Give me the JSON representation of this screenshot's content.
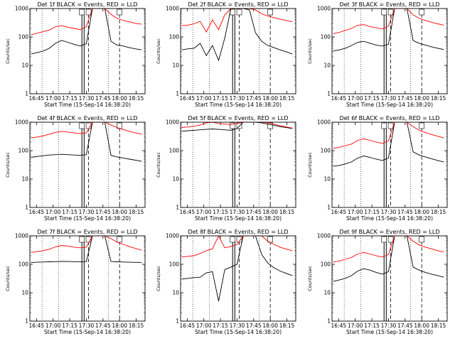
{
  "figure": {
    "ylabel": "Counts/sec",
    "xlabel": "Start Time (15-Sep-14 16:38:20)"
  },
  "chart_data": [
    {
      "type": "line",
      "title": "Det 1f BLACK = Events, RED = LLD",
      "scale": "log",
      "ylim": [
        1,
        1000
      ],
      "x_ticks": [
        "16:45",
        "17:00",
        "17:15",
        "17:30",
        "17:45",
        "18:00",
        "18:15"
      ],
      "series": [
        {
          "name": "Events",
          "color": "#000000",
          "values": [
            25,
            28,
            32,
            40,
            60,
            75,
            65,
            55,
            48,
            58,
            1000,
            1000,
            1000,
            70,
            52,
            48,
            42,
            38,
            35
          ]
        },
        {
          "name": "LLD",
          "color": "#ff0000",
          "values": [
            120,
            135,
            155,
            175,
            230,
            250,
            220,
            200,
            180,
            230,
            1000,
            1000,
            1000,
            620,
            450,
            380,
            340,
            300,
            280
          ]
        }
      ]
    },
    {
      "type": "line",
      "title": "Det 2f BLACK = Events, RED = LLD",
      "scale": "log",
      "ylim": [
        1,
        1000
      ],
      "x_ticks": [
        "16:45",
        "17:00",
        "17:15",
        "17:30",
        "17:45",
        "18:00",
        "18:15"
      ],
      "series": [
        {
          "name": "Events",
          "color": "#000000",
          "values": [
            35,
            38,
            40,
            60,
            22,
            50,
            15,
            90,
            1000,
            1000,
            1000,
            900,
            140,
            70,
            50,
            42,
            35,
            30,
            25
          ]
        },
        {
          "name": "LLD",
          "color": "#ff0000",
          "values": [
            250,
            260,
            290,
            350,
            150,
            400,
            180,
            600,
            1000,
            1000,
            1000,
            1000,
            900,
            650,
            550,
            480,
            420,
            380,
            340
          ]
        }
      ]
    },
    {
      "type": "line",
      "title": "Det 3f BLACK = Events, RED = LLD",
      "scale": "log",
      "ylim": [
        1,
        1000
      ],
      "x_ticks": [
        "16:45",
        "17:00",
        "17:15",
        "17:30",
        "17:45",
        "18:00",
        "18:15"
      ],
      "series": [
        {
          "name": "Events",
          "color": "#000000",
          "values": [
            32,
            35,
            40,
            50,
            65,
            70,
            60,
            52,
            48,
            55,
            1000,
            1000,
            1000,
            75,
            60,
            52,
            45,
            40,
            36
          ]
        },
        {
          "name": "LLD",
          "color": "#ff0000",
          "values": [
            130,
            145,
            170,
            200,
            260,
            270,
            230,
            210,
            190,
            240,
            1000,
            1000,
            1000,
            600,
            450,
            380,
            330,
            290,
            260
          ]
        }
      ]
    },
    {
      "type": "line",
      "title": "Det 4f BLACK = Events, RED = LLD",
      "scale": "log",
      "ylim": [
        1,
        1000
      ],
      "x_ticks": [
        "16:45",
        "17:00",
        "17:15",
        "17:30",
        "17:45",
        "18:00",
        "18:15"
      ],
      "series": [
        {
          "name": "Events",
          "color": "#000000",
          "values": [
            58,
            62,
            66,
            70,
            72,
            74,
            72,
            70,
            68,
            72,
            1000,
            1000,
            1000,
            68,
            60,
            55,
            50,
            46,
            42
          ]
        },
        {
          "name": "LLD",
          "color": "#ff0000",
          "values": [
            280,
            300,
            330,
            380,
            440,
            470,
            450,
            420,
            400,
            420,
            1000,
            1000,
            1000,
            800,
            650,
            550,
            480,
            420,
            380
          ]
        }
      ]
    },
    {
      "type": "line",
      "title": "Det 5f BLACK = Events, RED = LLD",
      "scale": "log",
      "ylim": [
        1,
        1000
      ],
      "x_ticks": [
        "16:45",
        "17:00",
        "17:15",
        "17:30",
        "17:45",
        "18:00",
        "18:15"
      ],
      "series": [
        {
          "name": "Events",
          "color": "#000000",
          "values": [
            480,
            500,
            520,
            540,
            560,
            580,
            560,
            540,
            520,
            600,
            1000,
            1000,
            1000,
            950,
            850,
            780,
            700,
            650,
            600
          ]
        },
        {
          "name": "LLD",
          "color": "#ff0000",
          "values": [
            650,
            680,
            720,
            800,
            950,
            1000,
            900,
            860,
            820,
            900,
            1000,
            1000,
            1000,
            1000,
            950,
            850,
            750,
            680,
            620
          ]
        }
      ]
    },
    {
      "type": "line",
      "title": "Det 6f BLACK = Events, RED = LLD",
      "scale": "log",
      "ylim": [
        1,
        1000
      ],
      "x_ticks": [
        "16:45",
        "17:00",
        "17:15",
        "17:30",
        "17:45",
        "18:00",
        "18:15"
      ],
      "series": [
        {
          "name": "Events",
          "color": "#000000",
          "values": [
            28,
            30,
            34,
            40,
            55,
            65,
            58,
            50,
            45,
            55,
            1000,
            1000,
            1000,
            90,
            70,
            60,
            52,
            45,
            40
          ]
        },
        {
          "name": "LLD",
          "color": "#ff0000",
          "values": [
            120,
            130,
            150,
            170,
            230,
            260,
            230,
            200,
            180,
            220,
            1000,
            1000,
            1000,
            700,
            520,
            430,
            370,
            320,
            280
          ]
        }
      ]
    },
    {
      "type": "line",
      "title": "Det 7f BLACK = Events, RED = LLD",
      "scale": "log",
      "ylim": [
        1,
        1000
      ],
      "x_ticks": [
        "16:45",
        "17:00",
        "17:15",
        "17:30",
        "17:45",
        "18:00",
        "18:15"
      ],
      "series": [
        {
          "name": "Events",
          "color": "#000000",
          "values": [
            115,
            118,
            120,
            122,
            124,
            126,
            125,
            124,
            123,
            124,
            1000,
            1000,
            1000,
            125,
            122,
            120,
            118,
            117,
            116
          ]
        },
        {
          "name": "LLD",
          "color": "#ff0000",
          "values": [
            260,
            280,
            300,
            340,
            410,
            460,
            440,
            400,
            380,
            400,
            1000,
            1000,
            1000,
            800,
            600,
            500,
            420,
            360,
            310
          ]
        }
      ]
    },
    {
      "type": "line",
      "title": "Det 8f BLACK = Events, RED = LLD",
      "scale": "log",
      "ylim": [
        1,
        1000
      ],
      "x_ticks": [
        "16:45",
        "17:00",
        "17:15",
        "17:30",
        "17:45",
        "18:00",
        "18:15"
      ],
      "series": [
        {
          "name": "Events",
          "color": "#000000",
          "values": [
            30,
            32,
            34,
            35,
            50,
            55,
            5,
            65,
            80,
            100,
            1000,
            1000,
            1000,
            220,
            110,
            75,
            58,
            48,
            40
          ]
        },
        {
          "name": "LLD",
          "color": "#ff0000",
          "values": [
            180,
            190,
            200,
            240,
            300,
            350,
            1000,
            380,
            420,
            500,
            1000,
            1000,
            1000,
            1000,
            650,
            500,
            400,
            340,
            300
          ]
        }
      ]
    },
    {
      "type": "line",
      "title": "Det 9f BLACK = Events, RED = LLD",
      "scale": "log",
      "ylim": [
        1,
        1000
      ],
      "x_ticks": [
        "16:45",
        "17:00",
        "17:15",
        "17:30",
        "17:45",
        "18:00",
        "18:15"
      ],
      "series": [
        {
          "name": "Events",
          "color": "#000000",
          "values": [
            25,
            28,
            32,
            40,
            58,
            70,
            62,
            52,
            45,
            55,
            1000,
            1000,
            1000,
            80,
            62,
            52,
            45,
            40,
            35
          ]
        },
        {
          "name": "LLD",
          "color": "#ff0000",
          "values": [
            120,
            130,
            150,
            175,
            230,
            260,
            230,
            200,
            180,
            220,
            1000,
            1000,
            1000,
            650,
            480,
            400,
            350,
            300,
            270
          ]
        }
      ]
    }
  ]
}
